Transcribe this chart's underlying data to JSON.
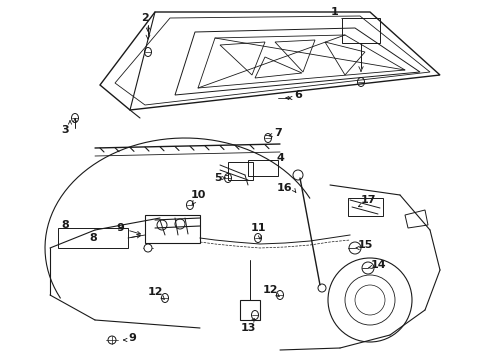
{
  "background_color": "#ffffff",
  "line_color": "#1a1a1a",
  "fig_width": 4.89,
  "fig_height": 3.6,
  "dpi": 100,
  "font_size": 8,
  "font_weight": "bold"
}
